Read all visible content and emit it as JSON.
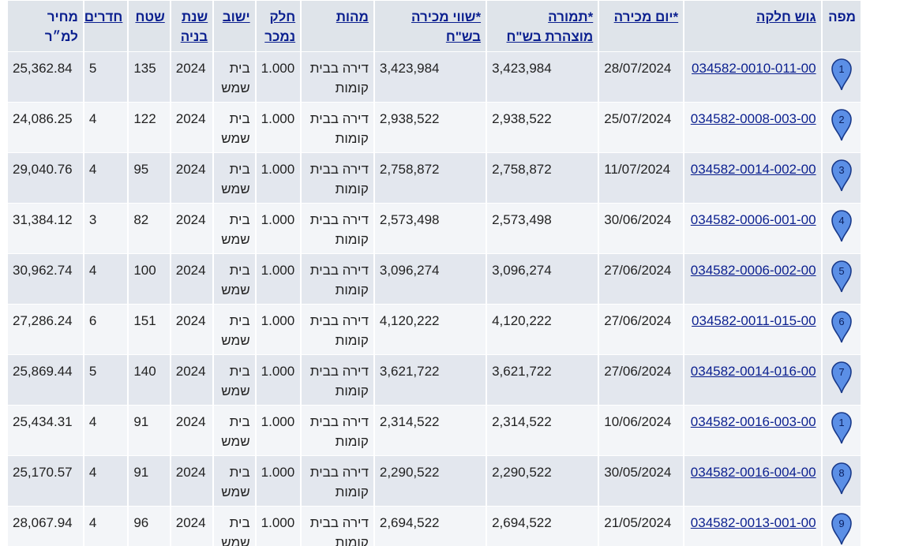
{
  "headers": {
    "map": "מפה",
    "gush": "גוש חלקה",
    "date": "*יום מכירה",
    "declared_l1": "*תמורה",
    "declared_l2": "מוצהרת בש\"ח",
    "value_l1": "*שווי מכירה",
    "value_l2": "בש\"ח",
    "type": "מהות",
    "part_l1": "חלק",
    "part_l2": "נמכר",
    "city": "ישוב",
    "year_l1": "שנת",
    "year_l2": "בניה",
    "area": "שטח",
    "rooms": "חדרים",
    "ppm_l1": "מחיר",
    "ppm_l2": "למ״ר"
  },
  "colors": {
    "pin_fill": "#5b8fe6",
    "pin_stroke": "#1a3a8a",
    "link": "#0a1f8f"
  },
  "rows": [
    {
      "pin": "1",
      "gush": "034582-0010-011-00",
      "date": "28/07/2024",
      "declared": "3,423,984",
      "value": "3,423,984",
      "type": "דירה בבית קומות",
      "part": "1.000",
      "city": "בית שמש",
      "year": "2024",
      "area": "135",
      "rooms": "5",
      "ppm": "25,362.84"
    },
    {
      "pin": "2",
      "gush": "034582-0008-003-00",
      "date": "25/07/2024",
      "declared": "2,938,522",
      "value": "2,938,522",
      "type": "דירה בבית קומות",
      "part": "1.000",
      "city": "בית שמש",
      "year": "2024",
      "area": "122",
      "rooms": "4",
      "ppm": "24,086.25"
    },
    {
      "pin": "3",
      "gush": "034582-0014-002-00",
      "date": "11/07/2024",
      "declared": "2,758,872",
      "value": "2,758,872",
      "type": "דירה בבית קומות",
      "part": "1.000",
      "city": "בית שמש",
      "year": "2024",
      "area": "95",
      "rooms": "4",
      "ppm": "29,040.76"
    },
    {
      "pin": "4",
      "gush": "034582-0006-001-00",
      "date": "30/06/2024",
      "declared": "2,573,498",
      "value": "2,573,498",
      "type": "דירה בבית קומות",
      "part": "1.000",
      "city": "בית שמש",
      "year": "2024",
      "area": "82",
      "rooms": "3",
      "ppm": "31,384.12"
    },
    {
      "pin": "5",
      "gush": "034582-0006-002-00",
      "date": "27/06/2024",
      "declared": "3,096,274",
      "value": "3,096,274",
      "type": "דירה בבית קומות",
      "part": "1.000",
      "city": "בית שמש",
      "year": "2024",
      "area": "100",
      "rooms": "4",
      "ppm": "30,962.74"
    },
    {
      "pin": "6",
      "gush": "034582-0011-015-00",
      "date": "27/06/2024",
      "declared": "4,120,222",
      "value": "4,120,222",
      "type": "דירה בבית קומות",
      "part": "1.000",
      "city": "בית שמש",
      "year": "2024",
      "area": "151",
      "rooms": "6",
      "ppm": "27,286.24"
    },
    {
      "pin": "7",
      "gush": "034582-0014-016-00",
      "date": "27/06/2024",
      "declared": "3,621,722",
      "value": "3,621,722",
      "type": "דירה בבית קומות",
      "part": "1.000",
      "city": "בית שמש",
      "year": "2024",
      "area": "140",
      "rooms": "5",
      "ppm": "25,869.44"
    },
    {
      "pin": "1",
      "gush": "034582-0016-003-00",
      "date": "10/06/2024",
      "declared": "2,314,522",
      "value": "2,314,522",
      "type": "דירה בבית קומות",
      "part": "1.000",
      "city": "בית שמש",
      "year": "2024",
      "area": "91",
      "rooms": "4",
      "ppm": "25,434.31"
    },
    {
      "pin": "8",
      "gush": "034582-0016-004-00",
      "date": "30/05/2024",
      "declared": "2,290,522",
      "value": "2,290,522",
      "type": "דירה בבית קומות",
      "part": "1.000",
      "city": "בית שמש",
      "year": "2024",
      "area": "91",
      "rooms": "4",
      "ppm": "25,170.57"
    },
    {
      "pin": "9",
      "gush": "034582-0013-001-00",
      "date": "21/05/2024",
      "declared": "2,694,522",
      "value": "2,694,522",
      "type": "דירה בבית קומות",
      "part": "1.000",
      "city": "בית שמש",
      "year": "2024",
      "area": "96",
      "rooms": "4",
      "ppm": "28,067.94"
    }
  ]
}
